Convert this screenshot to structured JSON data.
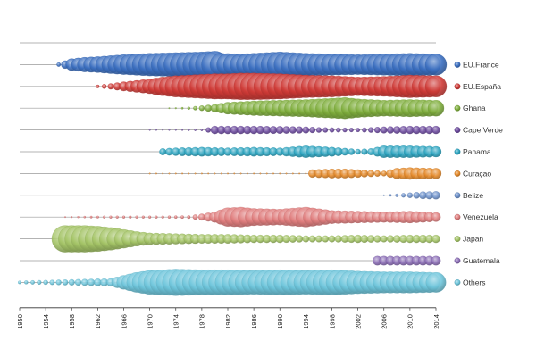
{
  "chart_data": {
    "type": "scatter",
    "title": "",
    "xlabel": "",
    "ylabel": "",
    "xlim": [
      1950,
      2014
    ],
    "x_ticks": [
      "1950",
      "1954",
      "1958",
      "1962",
      "1966",
      "1970",
      "1974",
      "1978",
      "1982",
      "1986",
      "1990",
      "1994",
      "1998",
      "2002",
      "2006",
      "2010",
      "2014"
    ],
    "legend_position": "right",
    "grid": "horizontal separators",
    "series": [
      {
        "name": "EU.France",
        "color": "#3a6ec0",
        "points": [
          [
            1956,
            0.15
          ],
          [
            1957,
            0.3
          ],
          [
            1958,
            0.45
          ],
          [
            1960,
            0.55
          ],
          [
            1962,
            0.6
          ],
          [
            1966,
            0.75
          ],
          [
            1970,
            0.85
          ],
          [
            1974,
            0.9
          ],
          [
            1978,
            0.95
          ],
          [
            1980,
            1.0
          ],
          [
            1981,
            0.85
          ],
          [
            1984,
            0.8
          ],
          [
            1986,
            0.85
          ],
          [
            1988,
            0.9
          ],
          [
            1990,
            0.95
          ],
          [
            1994,
            0.85
          ],
          [
            1998,
            0.8
          ],
          [
            2002,
            0.75
          ],
          [
            2006,
            0.8
          ],
          [
            2010,
            0.85
          ],
          [
            2014,
            0.8
          ]
        ]
      },
      {
        "name": "EU.España",
        "color": "#cf3a36",
        "points": [
          [
            1962,
            0.12
          ],
          [
            1964,
            0.22
          ],
          [
            1966,
            0.35
          ],
          [
            1968,
            0.45
          ],
          [
            1970,
            0.55
          ],
          [
            1972,
            0.7
          ],
          [
            1974,
            0.8
          ],
          [
            1976,
            0.85
          ],
          [
            1978,
            0.9
          ],
          [
            1980,
            0.95
          ],
          [
            1982,
            0.95
          ],
          [
            1984,
            1.0
          ],
          [
            1986,
            1.0
          ],
          [
            1990,
            0.95
          ],
          [
            1994,
            0.85
          ],
          [
            1998,
            0.8
          ],
          [
            2002,
            0.7
          ],
          [
            2006,
            0.75
          ],
          [
            2010,
            0.85
          ],
          [
            2014,
            0.8
          ]
        ]
      },
      {
        "name": "Ghana",
        "color": "#7fae3c",
        "points": [
          [
            1973,
            0.04
          ],
          [
            1974,
            0.06
          ],
          [
            1976,
            0.1
          ],
          [
            1978,
            0.2
          ],
          [
            1980,
            0.3
          ],
          [
            1982,
            0.45
          ],
          [
            1986,
            0.55
          ],
          [
            1990,
            0.6
          ],
          [
            1994,
            0.65
          ],
          [
            1998,
            0.75
          ],
          [
            2000,
            0.8
          ],
          [
            2002,
            0.7
          ],
          [
            2006,
            0.6
          ],
          [
            2010,
            0.65
          ],
          [
            2014,
            0.6
          ]
        ]
      },
      {
        "name": "Cape Verde",
        "color": "#6c4a9e",
        "points": [
          [
            1970,
            0.03
          ],
          [
            1974,
            0.05
          ],
          [
            1978,
            0.08
          ],
          [
            1980,
            0.3
          ],
          [
            1982,
            0.3
          ],
          [
            1986,
            0.3
          ],
          [
            1990,
            0.28
          ],
          [
            1994,
            0.25
          ],
          [
            1996,
            0.2
          ],
          [
            1998,
            0.18
          ],
          [
            2002,
            0.15
          ],
          [
            2006,
            0.25
          ],
          [
            2010,
            0.3
          ],
          [
            2014,
            0.3
          ]
        ]
      },
      {
        "name": "Panama",
        "color": "#2ba4c0",
        "points": [
          [
            1972,
            0.25
          ],
          [
            1974,
            0.3
          ],
          [
            1978,
            0.35
          ],
          [
            1982,
            0.3
          ],
          [
            1986,
            0.35
          ],
          [
            1990,
            0.3
          ],
          [
            1994,
            0.45
          ],
          [
            1996,
            0.4
          ],
          [
            1998,
            0.35
          ],
          [
            2002,
            0.2
          ],
          [
            2004,
            0.25
          ],
          [
            2006,
            0.45
          ],
          [
            2010,
            0.45
          ],
          [
            2014,
            0.4
          ]
        ]
      },
      {
        "name": "Curaçao",
        "color": "#e58a2a",
        "points": [
          [
            1970,
            0.02
          ],
          [
            1975,
            0.03
          ],
          [
            1980,
            0.03
          ],
          [
            1985,
            0.03
          ],
          [
            1990,
            0.03
          ],
          [
            1994,
            0.04
          ],
          [
            1995,
            0.3
          ],
          [
            1998,
            0.35
          ],
          [
            2000,
            0.35
          ],
          [
            2002,
            0.3
          ],
          [
            2006,
            0.2
          ],
          [
            2008,
            0.4
          ],
          [
            2010,
            0.45
          ],
          [
            2014,
            0.4
          ]
        ]
      },
      {
        "name": "Belize",
        "color": "#6f93cc",
        "points": [
          [
            2006,
            0.05
          ],
          [
            2008,
            0.12
          ],
          [
            2010,
            0.2
          ],
          [
            2012,
            0.28
          ],
          [
            2014,
            0.3
          ]
        ]
      },
      {
        "name": "Venezuela",
        "color": "#e07d7d",
        "points": [
          [
            1957,
            0.05
          ],
          [
            1960,
            0.08
          ],
          [
            1964,
            0.1
          ],
          [
            1968,
            0.1
          ],
          [
            1972,
            0.1
          ],
          [
            1976,
            0.12
          ],
          [
            1978,
            0.25
          ],
          [
            1980,
            0.4
          ],
          [
            1982,
            0.7
          ],
          [
            1984,
            0.75
          ],
          [
            1986,
            0.65
          ],
          [
            1990,
            0.6
          ],
          [
            1994,
            0.75
          ],
          [
            1998,
            0.5
          ],
          [
            2002,
            0.45
          ],
          [
            2006,
            0.4
          ],
          [
            2010,
            0.45
          ],
          [
            2014,
            0.35
          ]
        ]
      },
      {
        "name": "Japan",
        "color": "#a4c466",
        "points": [
          [
            1957,
            1.0
          ],
          [
            1960,
            1.0
          ],
          [
            1962,
            0.95
          ],
          [
            1964,
            0.85
          ],
          [
            1966,
            0.7
          ],
          [
            1968,
            0.55
          ],
          [
            1970,
            0.45
          ],
          [
            1974,
            0.4
          ],
          [
            1978,
            0.35
          ],
          [
            1982,
            0.35
          ],
          [
            1986,
            0.3
          ],
          [
            1990,
            0.3
          ],
          [
            1994,
            0.25
          ],
          [
            1998,
            0.25
          ],
          [
            2002,
            0.3
          ],
          [
            2006,
            0.25
          ],
          [
            2010,
            0.3
          ],
          [
            2014,
            0.3
          ]
        ]
      },
      {
        "name": "Guatemala",
        "color": "#8a6cb5",
        "points": [
          [
            2005,
            0.35
          ],
          [
            2007,
            0.35
          ],
          [
            2009,
            0.35
          ],
          [
            2011,
            0.35
          ],
          [
            2014,
            0.35
          ]
        ]
      },
      {
        "name": "Others",
        "color": "#6fc6dc",
        "points": [
          [
            1950,
            0.12
          ],
          [
            1952,
            0.15
          ],
          [
            1956,
            0.2
          ],
          [
            1960,
            0.25
          ],
          [
            1964,
            0.3
          ],
          [
            1968,
            0.75
          ],
          [
            1970,
            0.9
          ],
          [
            1972,
            0.95
          ],
          [
            1974,
            1.0
          ],
          [
            1978,
            0.95
          ],
          [
            1982,
            0.95
          ],
          [
            1986,
            0.9
          ],
          [
            1990,
            0.95
          ],
          [
            1994,
            0.9
          ],
          [
            1998,
            0.95
          ],
          [
            2002,
            0.85
          ],
          [
            2006,
            0.8
          ],
          [
            2010,
            0.8
          ],
          [
            2014,
            0.75
          ]
        ]
      }
    ]
  }
}
